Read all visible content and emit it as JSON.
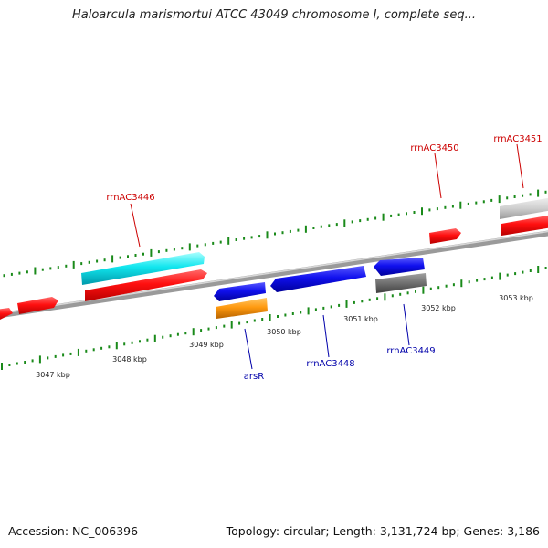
{
  "title": "Haloarcula marismortui ATCC 43049 chromosome I, complete seq...",
  "footer": {
    "accession": "Accession: NC_006396",
    "summary": "Topology: circular; Length: 3,131,724 bp; Genes: 3,186"
  },
  "colors": {
    "axis": "#888888",
    "tick_forward": "#1a8a1a",
    "tick_reverse": "#1a8a1a",
    "label_forward": "#cc0000",
    "label_reverse": "#0000aa"
  },
  "scale_labels": [
    "3047 kbp",
    "3048 kbp",
    "3049 kbp",
    "3050 kbp",
    "3051 kbp",
    "3052 kbp",
    "3053 kbp"
  ],
  "gene_labels": {
    "rrnAC3446": "rrnAC3446",
    "rrnAC3450": "rrnAC3450",
    "rrnAC3451": "rrnAC3451",
    "arsR": "arsR",
    "rrnAC3448": "rrnAC3448",
    "rrnAC3449": "rrnAC3449"
  }
}
